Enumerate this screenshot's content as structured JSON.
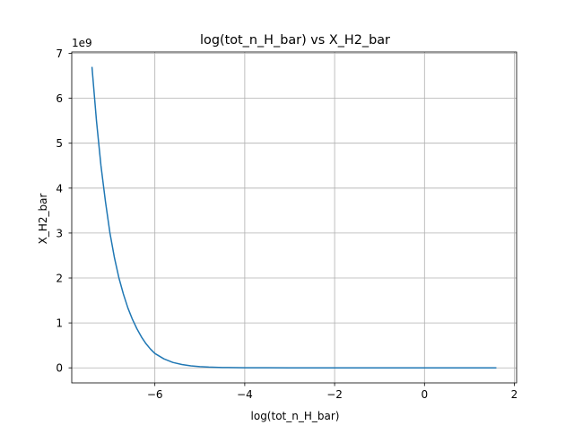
{
  "chart_data": {
    "type": "line",
    "title": "log(tot_n_H_bar) vs X_H2_bar",
    "xlabel": "log(tot_n_H_bar)",
    "ylabel": "X_H2_bar",
    "y_offset_label": "1e9",
    "xlim": [
      -7.85,
      2.05
    ],
    "ylim": [
      -0.335,
      7.03
    ],
    "y_multiplier": 1000000000,
    "x_ticks": [
      -6,
      -4,
      -2,
      0,
      2
    ],
    "x_tick_labels": [
      "−6",
      "−4",
      "−2",
      "0",
      "2"
    ],
    "y_ticks": [
      0,
      1,
      2,
      3,
      4,
      5,
      6,
      7
    ],
    "y_tick_labels": [
      "0",
      "1",
      "2",
      "3",
      "4",
      "5",
      "6",
      "7"
    ],
    "grid": true,
    "line_color": "#1f77b4",
    "series": [
      {
        "x": [
          -7.4,
          -7.3,
          -7.2,
          -7.1,
          -7.0,
          -6.9,
          -6.8,
          -6.7,
          -6.6,
          -6.5,
          -6.4,
          -6.3,
          -6.2,
          -6.1,
          -6.0,
          -5.8,
          -5.6,
          -5.4,
          -5.2,
          -5.0,
          -4.8,
          -4.5,
          -4.0,
          -3.5,
          -3.0,
          -2.0,
          -1.0,
          0.0,
          1.0,
          1.6
        ],
        "y": [
          6.7,
          5.5,
          4.5,
          3.7,
          3.0,
          2.45,
          2.0,
          1.64,
          1.33,
          1.08,
          0.87,
          0.69,
          0.54,
          0.42,
          0.32,
          0.2,
          0.12,
          0.075,
          0.045,
          0.027,
          0.016,
          0.008,
          0.003,
          0.001,
          0.0004,
          0.0,
          0.0,
          0.0,
          0.0,
          0.0
        ]
      }
    ]
  }
}
